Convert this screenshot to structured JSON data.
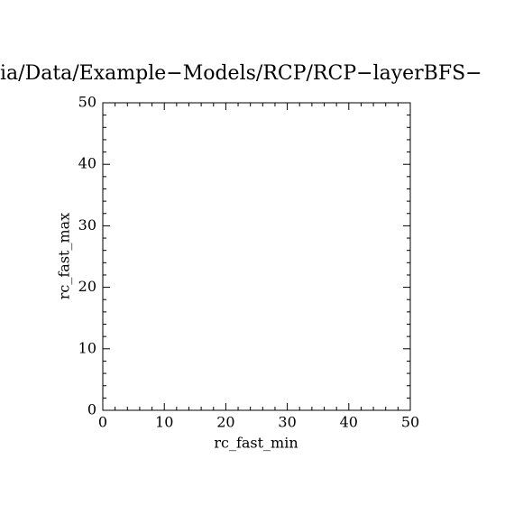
{
  "chart_data": {
    "type": "scatter",
    "title": "ia/Data/Example−Models/RCP/RCP−layerBFS−",
    "x_label": "rc_fast_min",
    "y_label": "rc_fast_max",
    "x": [],
    "y": [],
    "xlim": [
      0,
      50
    ],
    "ylim": [
      0,
      50
    ],
    "xticks": [
      0,
      10,
      20,
      30,
      40,
      50
    ],
    "yticks": [
      0,
      10,
      20,
      30,
      40,
      50
    ]
  }
}
